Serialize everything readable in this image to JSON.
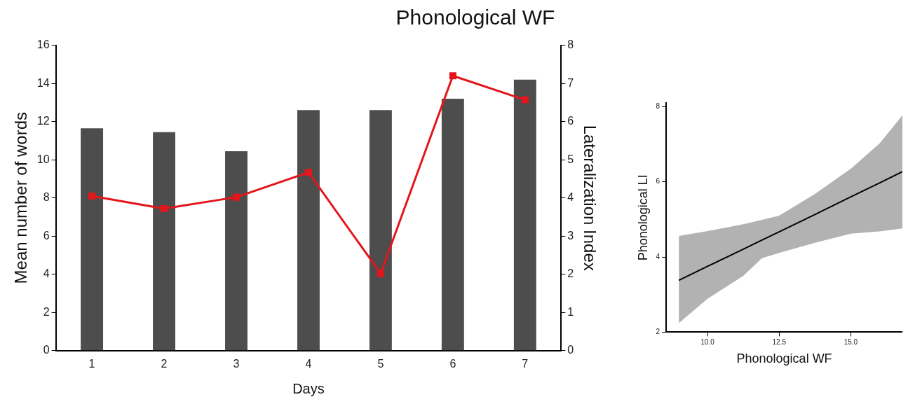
{
  "chart_data": [
    {
      "type": "bar",
      "title": "Phonological WF",
      "xlabel": "Days",
      "ylabel": "Mean number of words",
      "y2label": "Lateralization Index",
      "categories": [
        "1",
        "2",
        "3",
        "4",
        "5",
        "6",
        "7"
      ],
      "series": [
        {
          "type": "bar",
          "color": "#4d4d4d",
          "values": [
            11.65,
            11.45,
            10.45,
            12.6,
            12.6,
            13.2,
            14.2
          ]
        },
        {
          "type": "line",
          "axis": "y2",
          "color": "#e3161c",
          "marker": "square",
          "values": [
            4.05,
            3.72,
            4.02,
            4.67,
            2.02,
            7.2,
            6.57
          ]
        }
      ],
      "ylim": [
        0,
        16
      ],
      "yticks": [
        0,
        2,
        4,
        6,
        8,
        10,
        12,
        14,
        16
      ],
      "y2lim": [
        0,
        8
      ],
      "y2ticks": [
        0,
        1,
        2,
        3,
        4,
        5,
        6,
        7,
        8
      ],
      "grid": false,
      "legend": false
    },
    {
      "type": "line",
      "xlabel": "Phonological WF",
      "ylabel": "Phonological LI",
      "series": [
        {
          "type": "line",
          "color": "#000000",
          "x": [
            9.0,
            10.0,
            11.25,
            11.9,
            12.5,
            13.75,
            15.0,
            16.0,
            16.8
          ],
          "values": [
            3.38,
            3.75,
            4.21,
            4.45,
            4.67,
            5.13,
            5.6,
            5.97,
            6.27
          ],
          "lower": [
            2.24,
            2.89,
            3.5,
            3.97,
            4.11,
            4.38,
            4.62,
            4.68,
            4.76
          ],
          "upper": [
            4.56,
            4.69,
            4.87,
            4.99,
            5.1,
            5.68,
            6.35,
            7.02,
            7.77
          ]
        }
      ],
      "xlim": [
        8.56,
        16.8
      ],
      "xticks": [
        {
          "value": 10,
          "label": "10.0"
        },
        {
          "value": 12.5,
          "label": "12.5"
        },
        {
          "value": 15,
          "label": "15.0"
        }
      ],
      "ylim": [
        2,
        8.1
      ],
      "yticks": [
        2,
        4,
        6,
        8
      ],
      "grid": false,
      "legend": false
    }
  ]
}
